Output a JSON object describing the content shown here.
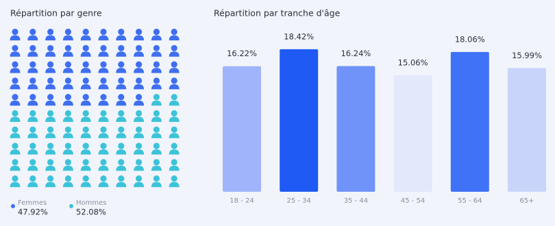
{
  "chart_data": [
    {
      "type": "waffle",
      "title": "Répartition par genre",
      "series": [
        {
          "name": "Femmes",
          "color": "#3f6ff0",
          "values": [
            47.92
          ],
          "value_labels": [
            "47.92%"
          ]
        },
        {
          "name": "Hommes",
          "color": "#3cc3d9",
          "values": [
            52.08
          ],
          "value_labels": [
            "52.08%"
          ]
        }
      ]
    },
    {
      "type": "bar",
      "title": "Répartition par tranche d'âge",
      "categories": [
        "18 - 24",
        "25 - 34",
        "35 - 44",
        "45 - 54",
        "55 - 64",
        "65+"
      ],
      "values": [
        16.22,
        18.42,
        16.24,
        15.06,
        18.06,
        15.99
      ],
      "value_labels": [
        "16.22%",
        "18.42%",
        "16.24%",
        "15.06%",
        "18.06%",
        "15.99%"
      ],
      "colors": [
        "#9fb4fb",
        "#1f5af5",
        "#6f93f9",
        "#e3e8fb",
        "#3f72f6",
        "#c9d4fb"
      ]
    }
  ]
}
